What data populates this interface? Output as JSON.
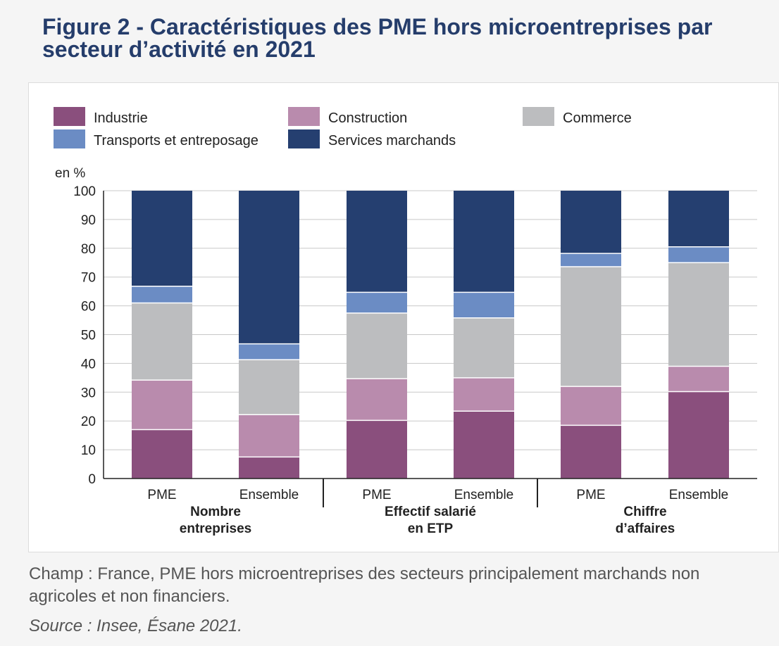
{
  "header": {
    "title": "Figure 2 - Caractéristiques des PME hors microentreprises par secteur d’activité en 2021"
  },
  "chart_data": {
    "type": "bar",
    "stacked": true,
    "title": "Figure 2 - Caractéristiques des PME hors microentreprises par secteur d’activité en 2021",
    "ylabel": "en %",
    "ylim": [
      0,
      100
    ],
    "yticks": [
      0,
      10,
      20,
      30,
      40,
      50,
      60,
      70,
      80,
      90,
      100
    ],
    "grid": true,
    "categories": [
      "PME",
      "Ensemble",
      "PME",
      "Ensemble",
      "PME",
      "Ensemble"
    ],
    "groups": [
      {
        "label_line1": "Nombre",
        "label_line2": "entreprises",
        "categories": [
          "PME",
          "Ensemble"
        ]
      },
      {
        "label_line1": "Effectif salarié",
        "label_line2": "en ETP",
        "categories": [
          "PME",
          "Ensemble"
        ]
      },
      {
        "label_line1": "Chiffre",
        "label_line2": "d’affaires",
        "categories": [
          "PME",
          "Ensemble"
        ]
      }
    ],
    "series": [
      {
        "name": "Industrie",
        "color": "#8a4f7d",
        "values": [
          17,
          7.5,
          20.2,
          23.4,
          18.5,
          30.2
        ]
      },
      {
        "name": "Construction",
        "color": "#b98bad",
        "values": [
          17.2,
          14.7,
          14.5,
          11.6,
          13.5,
          8.8
        ]
      },
      {
        "name": "Commerce",
        "color": "#bcbdbf",
        "values": [
          26.8,
          19.1,
          22.8,
          20.8,
          41.6,
          36
        ]
      },
      {
        "name": "Transports et entreposage",
        "color": "#6b8cc4",
        "values": [
          5.8,
          5.5,
          7.2,
          8.9,
          4.6,
          5.5
        ]
      },
      {
        "name": "Services marchands",
        "color": "#253f70",
        "values": [
          33.2,
          53.2,
          35.3,
          35.3,
          21.8,
          19.5
        ]
      }
    ],
    "legend_position": "top"
  },
  "footer": {
    "note": "Champ : France, PME hors microentreprises des secteurs principalement marchands non agricoles et non financiers.",
    "source": "Source : Insee, Ésane 2021."
  }
}
